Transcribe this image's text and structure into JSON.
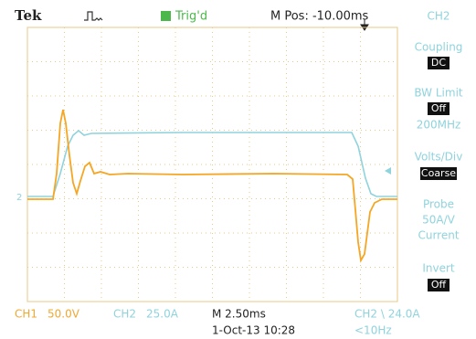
{
  "header": {
    "brand": "Tek",
    "status": "Trig'd",
    "position": "M Pos: -10.00ms"
  },
  "markers": {
    "ch2": "2"
  },
  "menu": {
    "title": "CH2",
    "coupling": {
      "label": "Coupling",
      "value": "DC"
    },
    "bw_limit": {
      "label": "BW Limit",
      "value": "Off",
      "detail": "200MHz"
    },
    "volts_div": {
      "label": "Volts/Div",
      "value": "Coarse"
    },
    "probe": {
      "label": "Probe",
      "lines": [
        "50A/V",
        "Current"
      ]
    },
    "invert": {
      "label": "Invert",
      "value": "Off"
    }
  },
  "footer": {
    "ch1": {
      "name": "CH1",
      "scale": "50.0V"
    },
    "ch2": {
      "name": "CH2",
      "scale": "25.0A"
    },
    "timebase": "M 2.50ms",
    "datetime": "1-Oct-13 10:28",
    "trigger": "CH2 \\ 24.0A",
    "frequency": "<10Hz"
  }
}
